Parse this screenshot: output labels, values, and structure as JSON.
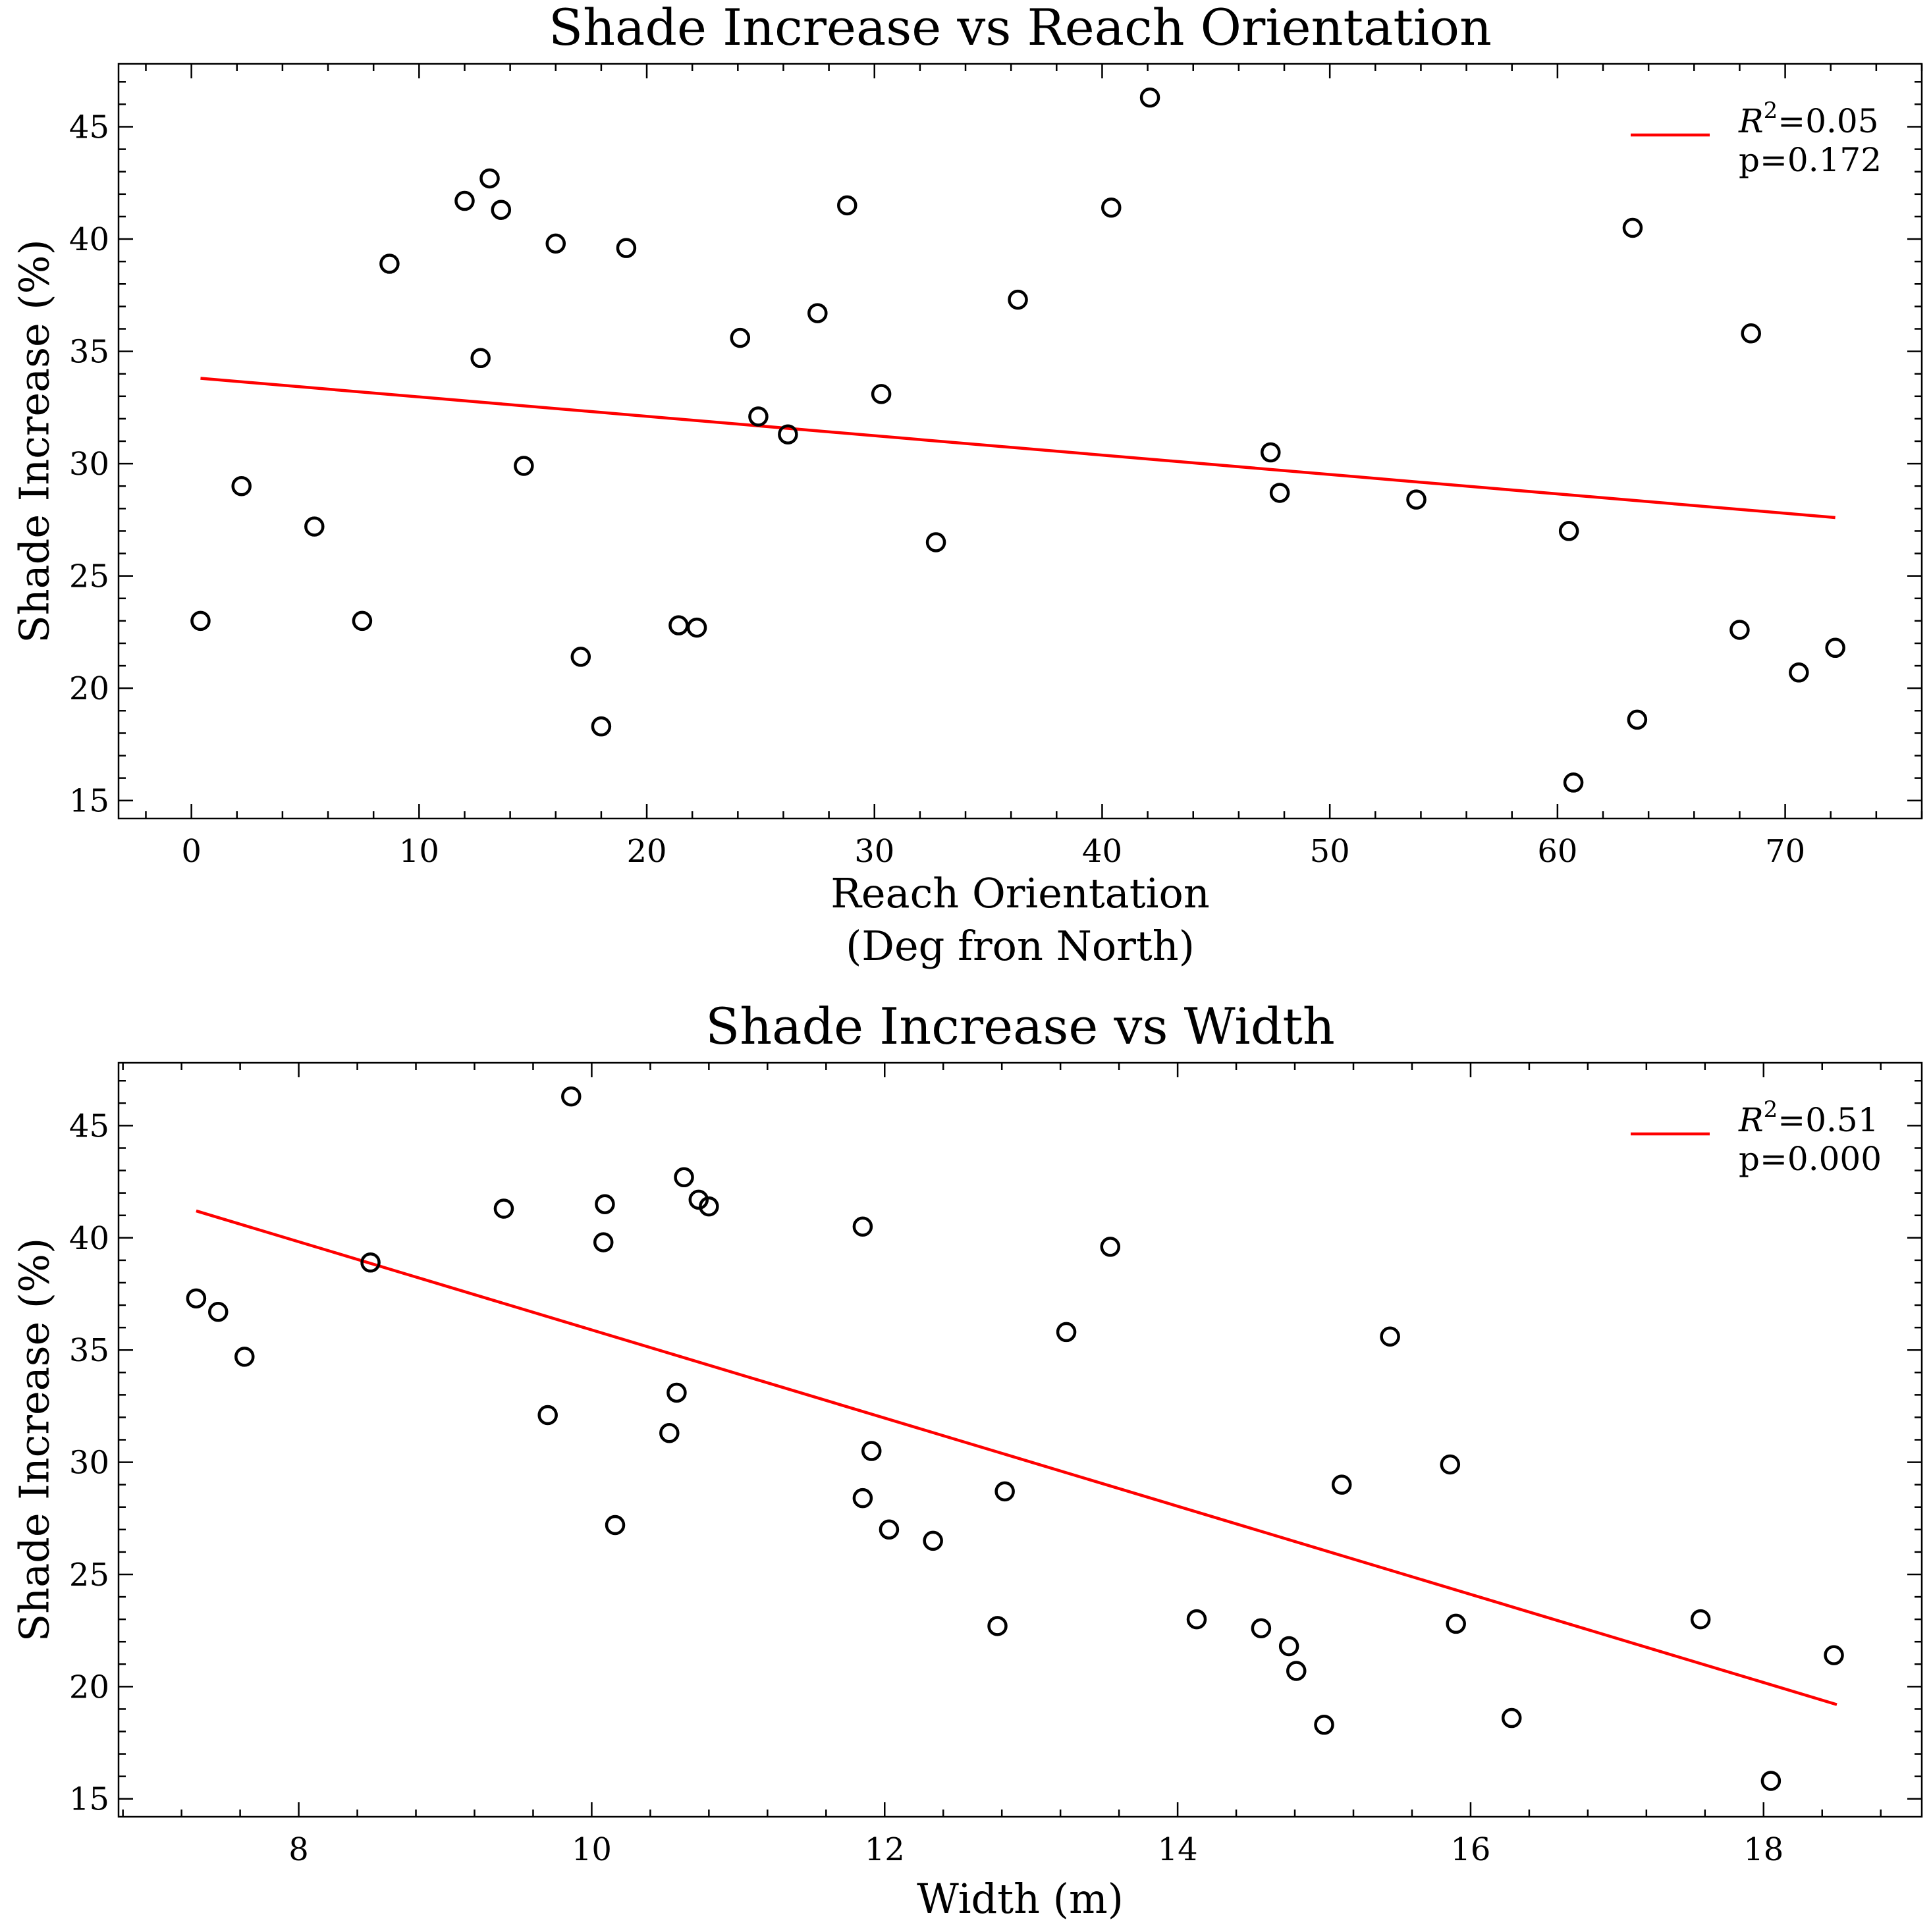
{
  "chart_data": [
    {
      "type": "scatter",
      "title": "Shade Increase vs Reach Orientation",
      "xlabel": [
        "Reach Orientation",
        "(Deg fron North)"
      ],
      "ylabel": "Shade Increase (%)",
      "xlim": [
        -3.2,
        76
      ],
      "ylim": [
        14.2,
        47.8
      ],
      "xticks": [
        0,
        10,
        20,
        30,
        40,
        50,
        60,
        70
      ],
      "xminor": 2,
      "yticks": [
        15,
        20,
        25,
        30,
        35,
        40,
        45
      ],
      "yminor": 1,
      "legend": {
        "position": "top-right",
        "r2_symbol": "R",
        "r2_exp": "2",
        "r2_value": "=0.05",
        "p_text": "p=0.172",
        "line_color": "#ff0000"
      },
      "fit_line": [
        [
          0.4,
          33.8
        ],
        [
          72.2,
          27.6
        ]
      ],
      "points": [
        [
          0.4,
          23.0
        ],
        [
          2.2,
          29.0
        ],
        [
          5.4,
          27.2
        ],
        [
          7.5,
          23.0
        ],
        [
          8.7,
          38.9
        ],
        [
          12.0,
          41.7
        ],
        [
          12.7,
          34.7
        ],
        [
          13.1,
          42.7
        ],
        [
          13.6,
          41.3
        ],
        [
          14.6,
          29.9
        ],
        [
          16.0,
          39.8
        ],
        [
          17.1,
          21.4
        ],
        [
          18.0,
          18.3
        ],
        [
          19.1,
          39.6
        ],
        [
          21.4,
          22.8
        ],
        [
          22.2,
          22.7
        ],
        [
          24.1,
          35.6
        ],
        [
          24.9,
          32.1
        ],
        [
          26.2,
          31.3
        ],
        [
          27.5,
          36.7
        ],
        [
          28.8,
          41.5
        ],
        [
          30.3,
          33.1
        ],
        [
          32.7,
          26.5
        ],
        [
          36.3,
          37.3
        ],
        [
          40.4,
          41.4
        ],
        [
          42.1,
          46.3
        ],
        [
          47.4,
          30.5
        ],
        [
          47.8,
          28.7
        ],
        [
          53.8,
          28.4
        ],
        [
          60.5,
          27.0
        ],
        [
          60.7,
          15.8
        ],
        [
          63.3,
          40.5
        ],
        [
          63.5,
          18.6
        ],
        [
          68.0,
          22.6
        ],
        [
          68.5,
          35.8
        ],
        [
          70.6,
          20.7
        ],
        [
          72.2,
          21.8
        ]
      ]
    },
    {
      "type": "scatter",
      "title": "Shade Increase vs Width",
      "xlabel": [
        "Width (m)"
      ],
      "ylabel": "Shade Increase (%)",
      "xlim": [
        6.77,
        19.08
      ],
      "ylim": [
        14.2,
        47.8
      ],
      "xticks": [
        8,
        10,
        12,
        14,
        16,
        18
      ],
      "xminor": 0.4,
      "yticks": [
        15,
        20,
        25,
        30,
        35,
        40,
        45
      ],
      "yminor": 1,
      "legend": {
        "position": "top-right",
        "r2_symbol": "R",
        "r2_exp": "2",
        "r2_value": "=0.51",
        "p_text": "p=0.000",
        "line_color": "#ff0000"
      },
      "fit_line": [
        [
          7.3,
          41.2
        ],
        [
          18.5,
          19.2
        ]
      ],
      "points": [
        [
          7.3,
          37.3
        ],
        [
          7.45,
          36.7
        ],
        [
          7.63,
          34.7
        ],
        [
          8.49,
          38.9
        ],
        [
          9.4,
          41.3
        ],
        [
          9.7,
          32.1
        ],
        [
          9.86,
          46.3
        ],
        [
          10.08,
          39.8
        ],
        [
          10.09,
          41.5
        ],
        [
          10.16,
          27.2
        ],
        [
          10.53,
          31.3
        ],
        [
          10.58,
          33.1
        ],
        [
          10.63,
          42.7
        ],
        [
          10.73,
          41.7
        ],
        [
          10.8,
          41.4
        ],
        [
          11.85,
          40.5
        ],
        [
          11.85,
          28.4
        ],
        [
          11.91,
          30.5
        ],
        [
          12.03,
          27.0
        ],
        [
          12.33,
          26.5
        ],
        [
          12.77,
          22.7
        ],
        [
          12.82,
          28.7
        ],
        [
          13.24,
          35.8
        ],
        [
          13.54,
          39.6
        ],
        [
          14.13,
          23.0
        ],
        [
          14.57,
          22.6
        ],
        [
          14.76,
          21.8
        ],
        [
          14.81,
          20.7
        ],
        [
          15.0,
          18.3
        ],
        [
          15.12,
          29.0
        ],
        [
          15.45,
          35.6
        ],
        [
          15.86,
          29.9
        ],
        [
          15.9,
          22.8
        ],
        [
          16.28,
          18.6
        ],
        [
          17.57,
          23.0
        ],
        [
          18.05,
          15.8
        ],
        [
          18.48,
          21.4
        ]
      ]
    }
  ]
}
